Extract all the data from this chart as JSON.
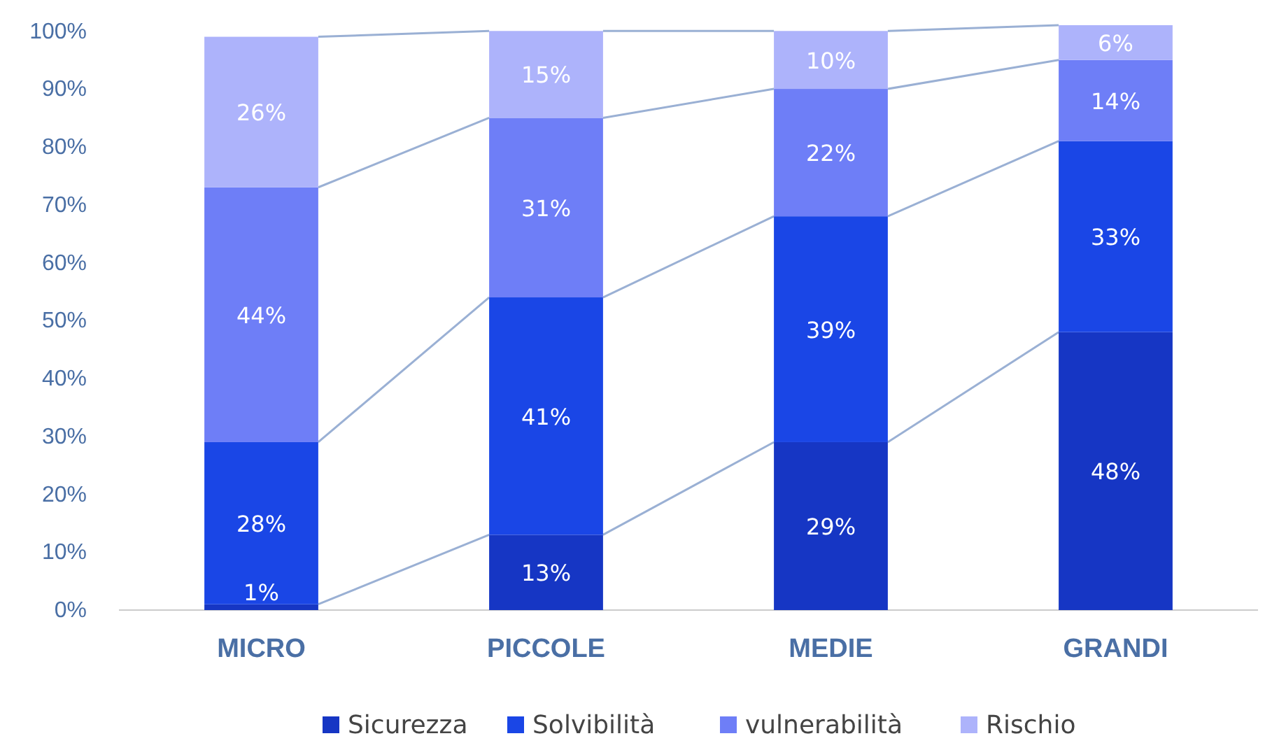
{
  "chart_data": {
    "type": "bar",
    "stacked": true,
    "categories": [
      "MICRO",
      "PICCOLE",
      "MEDIE",
      "GRANDI"
    ],
    "series": [
      {
        "name": "Sicurezza",
        "color": "#1636c4",
        "values": [
          1,
          13,
          29,
          48
        ],
        "value_labels": [
          "1%",
          "13%",
          "29%",
          "48%"
        ]
      },
      {
        "name": "Solvibilità",
        "color": "#1a46e6",
        "values": [
          28,
          41,
          39,
          33
        ],
        "value_labels": [
          "28%",
          "41%",
          "39%",
          "33%"
        ]
      },
      {
        "name": "vulnerabilità",
        "color": "#6e7ef7",
        "values": [
          44,
          31,
          22,
          14
        ],
        "value_labels": [
          "44%",
          "31%",
          "22%",
          "14%"
        ]
      },
      {
        "name": "Rischio",
        "color": "#adb3fb",
        "values": [
          26,
          15,
          10,
          6
        ],
        "value_labels": [
          "26%",
          "15%",
          "10%",
          "6%"
        ]
      }
    ],
    "ylim": [
      0,
      101
    ],
    "yticks": [
      {
        "value": 0,
        "label": "0%"
      },
      {
        "value": 10,
        "label": "10%"
      },
      {
        "value": 20,
        "label": "20%"
      },
      {
        "value": 30,
        "label": "30%"
      },
      {
        "value": 40,
        "label": "40%"
      },
      {
        "value": 50,
        "label": "50%"
      },
      {
        "value": 60,
        "label": "60%"
      },
      {
        "value": 70,
        "label": "70%"
      },
      {
        "value": 80,
        "label": "80%"
      },
      {
        "value": 90,
        "label": "90%"
      },
      {
        "value": 100,
        "label": "100%"
      }
    ],
    "grid": false,
    "legend": "bottom"
  }
}
